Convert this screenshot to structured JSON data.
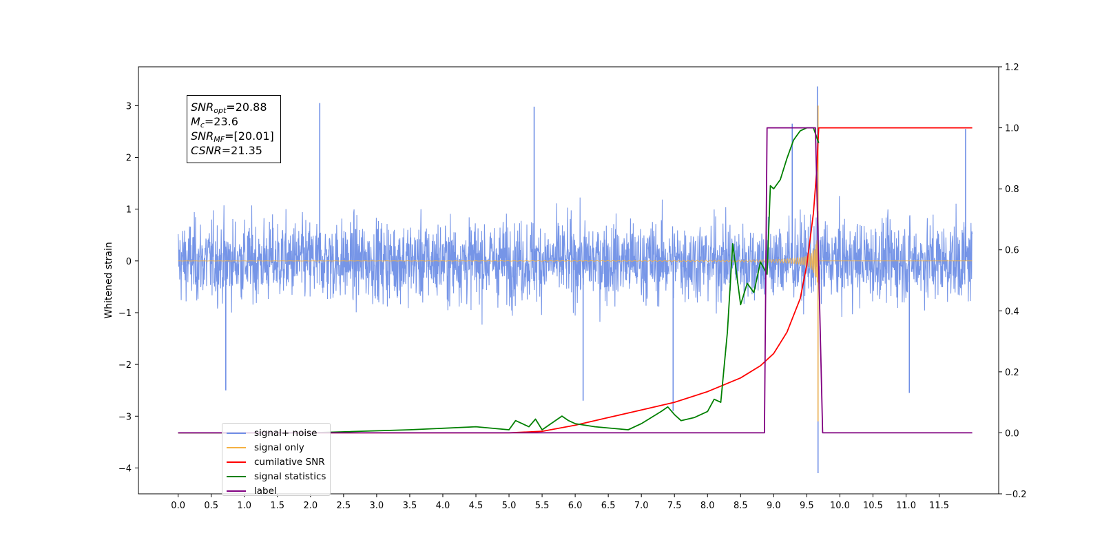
{
  "chart_data": {
    "type": "line",
    "title": "",
    "xlabel": "",
    "ylabel": "Whitened strain",
    "y2label": "",
    "xlim": [
      -0.6,
      12.4
    ],
    "ylim": [
      -4.5,
      3.75
    ],
    "y2lim": [
      -0.2,
      1.2
    ],
    "x_ticks": [
      "0.0",
      "0.5",
      "1.0",
      "1.5",
      "2.0",
      "2.5",
      "3.0",
      "3.5",
      "4.0",
      "4.5",
      "5.0",
      "5.5",
      "6.0",
      "6.5",
      "7.0",
      "7.5",
      "8.0",
      "8.5",
      "9.0",
      "9.5",
      "10.0",
      "10.5",
      "11.0",
      "11.5"
    ],
    "y_ticks": [
      "−4",
      "−3",
      "−2",
      "−1",
      "0",
      "1",
      "2",
      "3"
    ],
    "y2_ticks": [
      "−0.2",
      "0.0",
      "0.2",
      "0.4",
      "0.6",
      "0.8",
      "1.0",
      "1.2"
    ],
    "grid": false,
    "legend_position": "lower-left",
    "annotation": {
      "snr_opt": "=20.88",
      "mc": "=23.6",
      "snr_mf": "=[20.01]",
      "csnr": "=21.35"
    },
    "series": [
      {
        "name": "signal+ noise",
        "color": "#6f8fe6",
        "axis": "left",
        "description": "noisy whitened strain, approx. zero-mean with spread about ±1.3, spikes to ±3",
        "x_range": [
          0.0,
          12.0
        ],
        "amplitude": 1.25,
        "spikes": [
          {
            "x": 0.72,
            "y": -2.5
          },
          {
            "x": 2.14,
            "y": 3.05
          },
          {
            "x": 5.38,
            "y": 2.98
          },
          {
            "x": 6.12,
            "y": -2.7
          },
          {
            "x": 7.48,
            "y": -2.9
          },
          {
            "x": 9.28,
            "y": 2.65
          },
          {
            "x": 9.66,
            "y": 3.37
          },
          {
            "x": 9.67,
            "y": -4.1
          },
          {
            "x": 11.05,
            "y": -2.55
          },
          {
            "x": 11.9,
            "y": 2.55
          }
        ]
      },
      {
        "name": "signal only",
        "color": "#f5b041",
        "axis": "left",
        "description": "chirp signal growing in amplitude until merger near x=9.67",
        "merger_x": 9.67,
        "peak": 3.0
      },
      {
        "name": "cumilative SNR",
        "color": "#ff0000",
        "axis": "right",
        "x": [
          0.0,
          5.0,
          5.5,
          6.0,
          6.5,
          7.0,
          7.5,
          8.0,
          8.5,
          8.8,
          9.0,
          9.2,
          9.4,
          9.5,
          9.6,
          9.65,
          9.68,
          12.0
        ],
        "y": [
          0.0,
          0.0,
          0.005,
          0.025,
          0.05,
          0.075,
          0.1,
          0.135,
          0.18,
          0.22,
          0.26,
          0.33,
          0.44,
          0.55,
          0.72,
          0.86,
          1.0,
          1.0
        ]
      },
      {
        "name": "signal statistics",
        "color": "#008000",
        "axis": "right",
        "x": [
          0.0,
          2.0,
          3.5,
          4.5,
          5.0,
          5.1,
          5.2,
          5.3,
          5.4,
          5.5,
          5.8,
          5.9,
          6.0,
          6.3,
          6.8,
          7.0,
          7.3,
          7.4,
          7.5,
          7.6,
          7.8,
          8.0,
          8.1,
          8.2,
          8.3,
          8.38,
          8.5,
          8.6,
          8.7,
          8.8,
          8.9,
          8.95,
          9.0,
          9.1,
          9.2,
          9.3,
          9.4,
          9.5,
          9.6,
          9.68
        ],
        "y": [
          0.0,
          0.0,
          0.01,
          0.02,
          0.01,
          0.04,
          0.03,
          0.02,
          0.045,
          0.01,
          0.055,
          0.04,
          0.03,
          0.02,
          0.01,
          0.03,
          0.07,
          0.085,
          0.06,
          0.04,
          0.05,
          0.07,
          0.11,
          0.1,
          0.33,
          0.62,
          0.42,
          0.49,
          0.46,
          0.56,
          0.52,
          0.81,
          0.8,
          0.83,
          0.9,
          0.96,
          0.99,
          1.0,
          1.0,
          0.95
        ]
      },
      {
        "name": "label",
        "color": "#800080",
        "axis": "right",
        "x": [
          0.0,
          8.86,
          8.9,
          9.63,
          9.74,
          12.0
        ],
        "y": [
          0.0,
          0.0,
          1.0,
          1.0,
          0.0,
          0.0
        ]
      }
    ],
    "legend_labels": [
      "signal+ noise",
      "signal only",
      "cumilative SNR",
      "signal statistics",
      "label"
    ],
    "legend_ghost_text": "cumilative SNR"
  }
}
